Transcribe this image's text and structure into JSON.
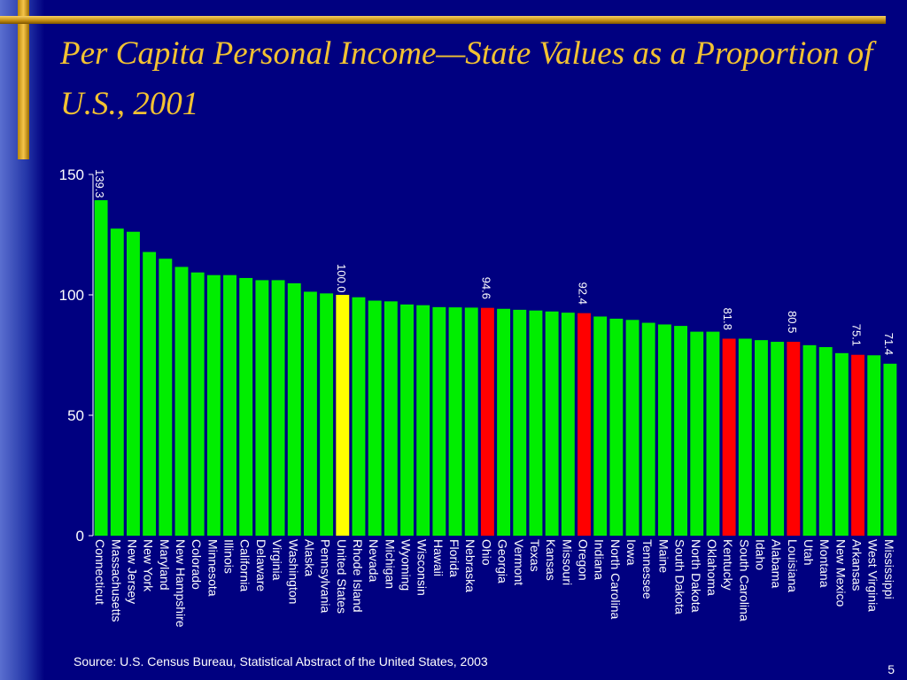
{
  "slide": {
    "title": "Per Capita Personal Income—State Values as a Proportion of U.S., 2001",
    "source": "Source:  U.S. Census Bureau, Statistical Abstract of the United States, 2003",
    "page_number": "5"
  },
  "colors": {
    "background": "#000080",
    "title": "#f2c232",
    "bar_default": "#00ee00",
    "bar_us": "#ffff00",
    "bar_highlight": "#ff0000",
    "text": "#ffffff"
  },
  "chart_data": {
    "type": "bar",
    "orientation": "vertical",
    "title": "",
    "xlabel": "",
    "ylabel": "",
    "ylim": [
      0,
      150
    ],
    "yticks": [
      0,
      50,
      100,
      150
    ],
    "grid": false,
    "legend": "none",
    "categories": [
      "Connecticut",
      "Massachusetts",
      "New Jersey",
      "New York",
      "Maryland",
      "New Hampshire",
      "Colorado",
      "Minnesota",
      "Illinois",
      "California",
      "Delaware",
      "Virginia",
      "Washington",
      "Alaska",
      "Pennsylvania",
      "United States",
      "Rhode Island",
      "Nevada",
      "Michigan",
      "Wyoming",
      "Wisconsin",
      "Hawaii",
      "Florida",
      "Nebraska",
      "Ohio",
      "Georgia",
      "Vermont",
      "Texas",
      "Kansas",
      "Missouri",
      "Oregon",
      "Indiana",
      "North Carolina",
      "Iowa",
      "Tennessee",
      "Maine",
      "South Dakota",
      "North Dakota",
      "Oklahoma",
      "Kentucky",
      "South Carolina",
      "Idaho",
      "Alabama",
      "Louisiana",
      "Utah",
      "Montana",
      "New Mexico",
      "Arkansas",
      "West Virginia",
      "Mississippi"
    ],
    "values": [
      139.3,
      127.5,
      126.2,
      117.8,
      115.0,
      111.6,
      109.3,
      108.2,
      108.2,
      107.0,
      106.1,
      106.1,
      104.8,
      101.3,
      100.6,
      100.0,
      99.0,
      97.6,
      97.3,
      96.0,
      95.7,
      94.9,
      94.8,
      94.7,
      94.6,
      94.2,
      93.8,
      93.5,
      93.1,
      92.6,
      92.4,
      91.0,
      90.1,
      89.6,
      88.4,
      87.7,
      87.1,
      84.7,
      84.7,
      81.8,
      81.8,
      81.2,
      80.5,
      80.5,
      79.1,
      78.3,
      75.8,
      75.1,
      74.9,
      71.4
    ],
    "bar_colors": [
      "green",
      "green",
      "green",
      "green",
      "green",
      "green",
      "green",
      "green",
      "green",
      "green",
      "green",
      "green",
      "green",
      "green",
      "green",
      "yellow",
      "green",
      "green",
      "green",
      "green",
      "green",
      "green",
      "green",
      "green",
      "red",
      "green",
      "green",
      "green",
      "green",
      "green",
      "red",
      "green",
      "green",
      "green",
      "green",
      "green",
      "green",
      "green",
      "green",
      "red",
      "green",
      "green",
      "green",
      "red",
      "green",
      "green",
      "green",
      "red",
      "green",
      "green"
    ],
    "data_labels": [
      {
        "category": "Connecticut",
        "text": "139.3"
      },
      {
        "category": "United States",
        "text": "100.0"
      },
      {
        "category": "Ohio",
        "text": "94.6"
      },
      {
        "category": "Oregon",
        "text": "92.4"
      },
      {
        "category": "Kentucky",
        "text": "81.8"
      },
      {
        "category": "Louisiana",
        "text": "80.5"
      },
      {
        "category": "Arkansas",
        "text": "75.1"
      },
      {
        "category": "Mississippi",
        "text": "71.4"
      }
    ]
  }
}
